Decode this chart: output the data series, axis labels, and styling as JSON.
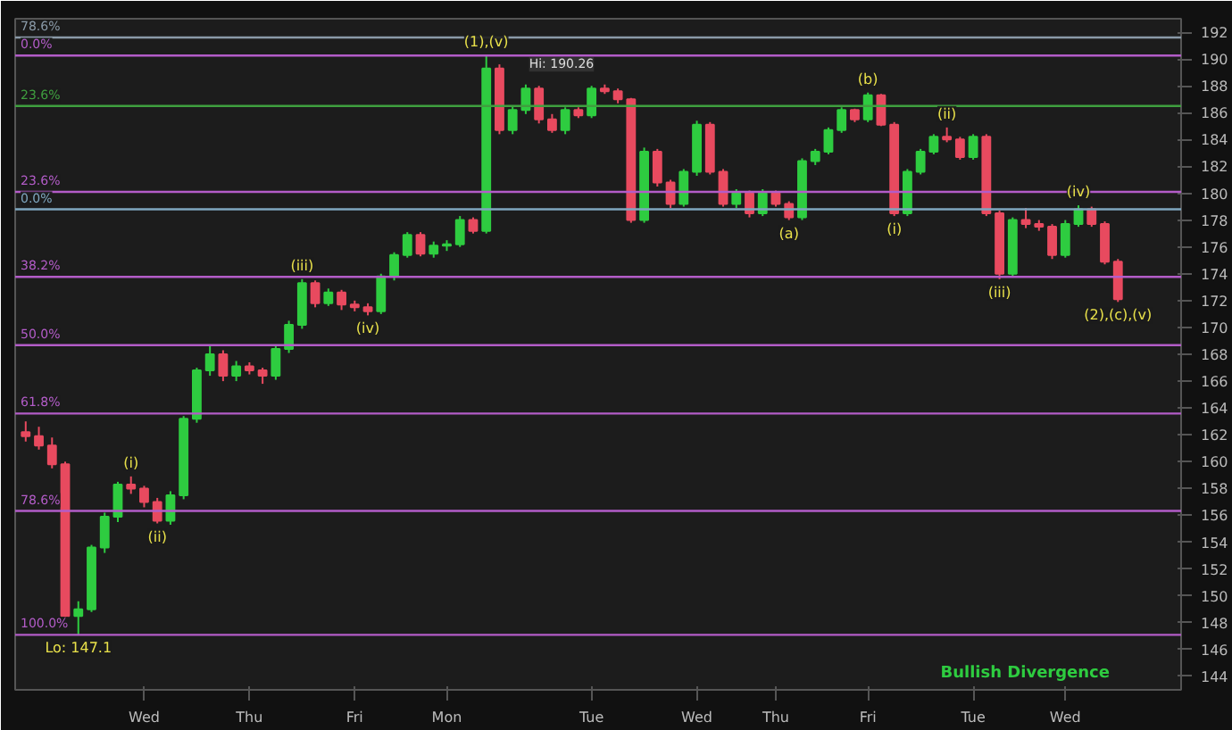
{
  "chart_data": {
    "type": "candlestick",
    "categories": [
      null,
      null,
      null,
      null,
      null,
      null,
      null,
      null,
      null,
      "Wed",
      null,
      null,
      null,
      null,
      null,
      null,
      null,
      "Thu",
      null,
      null,
      null,
      null,
      null,
      null,
      null,
      "Fri",
      null,
      null,
      null,
      null,
      null,
      null,
      "Mon",
      null,
      null,
      null,
      null,
      null,
      null,
      null,
      null,
      null,
      null,
      "Tue",
      null,
      null,
      null,
      null,
      null,
      null,
      null,
      "Wed",
      null,
      null,
      null,
      null,
      null,
      "Thu",
      null,
      null,
      null,
      null,
      null,
      null,
      "Fri",
      null,
      null,
      null,
      null,
      null,
      null,
      null,
      "Tue",
      null,
      null,
      null,
      null,
      null,
      null,
      "Wed",
      null,
      null,
      null,
      null
    ],
    "ohlc": [
      [
        162.2,
        163.0,
        161.5,
        161.9
      ],
      [
        161.9,
        162.6,
        160.9,
        161.2
      ],
      [
        161.2,
        161.8,
        159.5,
        159.8
      ],
      [
        159.8,
        160.0,
        148.3,
        148.5
      ],
      [
        148.5,
        149.6,
        147.1,
        149.0
      ],
      [
        149.0,
        153.8,
        148.8,
        153.6
      ],
      [
        153.6,
        156.2,
        153.2,
        155.9
      ],
      [
        155.9,
        158.5,
        155.5,
        158.3
      ],
      [
        158.3,
        158.9,
        157.6,
        158.0
      ],
      [
        158.0,
        158.2,
        156.6,
        157.0
      ],
      [
        157.0,
        157.3,
        155.4,
        155.6
      ],
      [
        155.6,
        157.8,
        155.3,
        157.5
      ],
      [
        157.5,
        163.4,
        157.2,
        163.2
      ],
      [
        163.2,
        167.0,
        162.9,
        166.8
      ],
      [
        166.8,
        168.6,
        166.4,
        168.0
      ],
      [
        168.0,
        168.3,
        166.0,
        166.4
      ],
      [
        166.4,
        167.5,
        166.0,
        167.1
      ],
      [
        167.1,
        167.4,
        166.5,
        166.8
      ],
      [
        166.8,
        167.0,
        165.8,
        166.4
      ],
      [
        166.4,
        168.6,
        166.1,
        168.4
      ],
      [
        168.4,
        170.5,
        168.1,
        170.2
      ],
      [
        170.2,
        173.6,
        169.9,
        173.3
      ],
      [
        173.3,
        173.5,
        171.5,
        171.8
      ],
      [
        171.8,
        172.9,
        171.6,
        172.6
      ],
      [
        172.6,
        172.8,
        171.3,
        171.7
      ],
      [
        171.7,
        172.0,
        171.2,
        171.5
      ],
      [
        171.5,
        171.8,
        170.9,
        171.2
      ],
      [
        171.2,
        174.0,
        171.0,
        173.8
      ],
      [
        173.8,
        175.6,
        173.5,
        175.4
      ],
      [
        175.4,
        177.1,
        175.2,
        176.9
      ],
      [
        176.9,
        177.1,
        175.3,
        175.5
      ],
      [
        175.5,
        176.4,
        175.2,
        176.1
      ],
      [
        176.1,
        176.5,
        175.7,
        176.2
      ],
      [
        176.2,
        178.3,
        176.0,
        178.0
      ],
      [
        178.0,
        178.2,
        177.0,
        177.2
      ],
      [
        177.2,
        190.26,
        177.0,
        189.3
      ],
      [
        189.3,
        189.6,
        184.4,
        184.7
      ],
      [
        184.7,
        186.5,
        184.4,
        186.2
      ],
      [
        186.2,
        188.1,
        185.9,
        187.8
      ],
      [
        187.8,
        188.0,
        185.2,
        185.5
      ],
      [
        185.5,
        185.9,
        184.5,
        184.7
      ],
      [
        184.7,
        186.4,
        184.4,
        186.2
      ],
      [
        186.2,
        186.4,
        185.6,
        185.8
      ],
      [
        185.8,
        188.0,
        185.6,
        187.8
      ],
      [
        187.8,
        188.1,
        187.4,
        187.6
      ],
      [
        187.6,
        187.8,
        186.7,
        187.0
      ],
      [
        187.0,
        187.1,
        177.8,
        178.0
      ],
      [
        178.0,
        183.4,
        177.8,
        183.1
      ],
      [
        183.1,
        183.3,
        180.5,
        180.8
      ],
      [
        180.8,
        181.0,
        178.9,
        179.2
      ],
      [
        179.2,
        181.8,
        179.0,
        181.6
      ],
      [
        181.6,
        185.4,
        181.3,
        185.1
      ],
      [
        185.1,
        185.3,
        181.4,
        181.6
      ],
      [
        181.6,
        181.8,
        179.0,
        179.2
      ],
      [
        179.2,
        180.3,
        178.9,
        180.0
      ],
      [
        180.0,
        180.2,
        178.2,
        178.5
      ],
      [
        178.5,
        180.3,
        178.3,
        180.0
      ],
      [
        180.0,
        180.2,
        179.0,
        179.2
      ],
      [
        179.2,
        179.4,
        178.0,
        178.2
      ],
      [
        178.2,
        182.6,
        178.0,
        182.4
      ],
      [
        182.4,
        183.3,
        182.1,
        183.1
      ],
      [
        183.1,
        184.9,
        182.9,
        184.7
      ],
      [
        184.7,
        186.4,
        184.5,
        186.2
      ],
      [
        186.2,
        186.3,
        185.3,
        185.5
      ],
      [
        185.5,
        187.5,
        185.3,
        187.3
      ],
      [
        187.3,
        187.4,
        185.0,
        185.1
      ],
      [
        185.1,
        185.3,
        178.3,
        178.5
      ],
      [
        178.5,
        181.8,
        178.3,
        181.6
      ],
      [
        181.6,
        183.3,
        181.4,
        183.1
      ],
      [
        183.1,
        184.4,
        182.9,
        184.2
      ],
      [
        184.2,
        184.9,
        183.8,
        184.0
      ],
      [
        184.0,
        184.2,
        182.5,
        182.7
      ],
      [
        182.7,
        184.4,
        182.5,
        184.2
      ],
      [
        184.2,
        184.4,
        178.3,
        178.5
      ],
      [
        178.5,
        178.7,
        173.6,
        174.0
      ],
      [
        174.0,
        178.2,
        173.8,
        178.0
      ],
      [
        178.0,
        178.9,
        177.4,
        177.7
      ],
      [
        177.7,
        178.0,
        177.2,
        177.5
      ],
      [
        177.5,
        177.7,
        175.1,
        175.4
      ],
      [
        175.4,
        178.0,
        175.2,
        177.7
      ],
      [
        177.7,
        179.1,
        177.5,
        178.8
      ],
      [
        178.8,
        179.0,
        177.5,
        177.7
      ],
      [
        177.7,
        177.9,
        174.7,
        174.9
      ],
      [
        174.9,
        175.1,
        171.9,
        172.1
      ]
    ],
    "colors": [
      "#e84a5f",
      "#e84a5f",
      "#e84a5f",
      "#e84a5f",
      "#2ecc40",
      "#2ecc40",
      "#2ecc40",
      "#2ecc40",
      "#e84a5f",
      "#e84a5f",
      "#e84a5f",
      "#2ecc40",
      "#2ecc40",
      "#2ecc40",
      "#2ecc40",
      "#e84a5f",
      "#2ecc40",
      "#e84a5f",
      "#e84a5f",
      "#2ecc40",
      "#2ecc40",
      "#2ecc40",
      "#e84a5f",
      "#2ecc40",
      "#e84a5f",
      "#e84a5f",
      "#e84a5f",
      "#2ecc40",
      "#2ecc40",
      "#2ecc40",
      "#e84a5f",
      "#2ecc40",
      "#2ecc40",
      "#2ecc40",
      "#e84a5f",
      "#2ecc40",
      "#e84a5f",
      "#2ecc40",
      "#2ecc40",
      "#e84a5f",
      "#e84a5f",
      "#2ecc40",
      "#e84a5f",
      "#2ecc40",
      "#e84a5f",
      "#e84a5f",
      "#e84a5f",
      "#2ecc40",
      "#e84a5f",
      "#e84a5f",
      "#2ecc40",
      "#2ecc40",
      "#e84a5f",
      "#e84a5f",
      "#2ecc40",
      "#e84a5f",
      "#2ecc40",
      "#e84a5f",
      "#e84a5f",
      "#2ecc40",
      "#2ecc40",
      "#2ecc40",
      "#2ecc40",
      "#e84a5f",
      "#2ecc40",
      "#e84a5f",
      "#e84a5f",
      "#2ecc40",
      "#2ecc40",
      "#2ecc40",
      "#e84a5f",
      "#e84a5f",
      "#2ecc40",
      "#e84a5f",
      "#e84a5f",
      "#2ecc40",
      "#e84a5f",
      "#e84a5f",
      "#e84a5f",
      "#2ecc40",
      "#2ecc40",
      "#e84a5f",
      "#e84a5f",
      "#e84a5f"
    ],
    "ylim": [
      143,
      193
    ],
    "yticks": [
      144,
      146,
      148,
      150,
      152,
      154,
      156,
      158,
      160,
      162,
      164,
      166,
      168,
      170,
      172,
      174,
      176,
      178,
      180,
      182,
      184,
      186,
      188,
      190,
      192
    ],
    "ref_lines": [
      {
        "axis": "y",
        "value": 191.6,
        "color": "#8a9aa8"
      },
      {
        "axis": "y",
        "value": 190.26,
        "color": "#b35cc8"
      },
      {
        "axis": "y",
        "value": 186.5,
        "color": "#3f9f3f"
      },
      {
        "axis": "y",
        "value": 180.1,
        "color": "#b35cc8"
      },
      {
        "axis": "y",
        "value": 178.8,
        "color": "#7fa7c0"
      },
      {
        "axis": "y",
        "value": 173.77,
        "color": "#b35cc8"
      },
      {
        "axis": "y",
        "value": 168.68,
        "color": "#b35cc8"
      },
      {
        "axis": "y",
        "value": 163.59,
        "color": "#b35cc8"
      },
      {
        "axis": "y",
        "value": 156.33,
        "color": "#b35cc8"
      },
      {
        "axis": "y",
        "value": 147.1,
        "color": "#b35cc8"
      }
    ],
    "annotations": [
      {
        "text": "78.6%",
        "y": 191.6
      },
      {
        "text": "0.0%",
        "y": 190.26
      },
      {
        "text": "23.6%",
        "y": 186.5
      },
      {
        "text": "23.6%",
        "y": 180.1
      },
      {
        "text": "0.0%",
        "y": 178.8
      },
      {
        "text": "38.2%",
        "y": 173.77
      },
      {
        "text": "50.0%",
        "y": 168.68
      },
      {
        "text": "61.8%",
        "y": 163.59
      },
      {
        "text": "78.6%",
        "y": 156.33
      },
      {
        "text": "100.0%",
        "y": 147.1
      },
      {
        "text": "Lo: 147.1",
        "y": 147.1
      },
      {
        "text": "(i)",
        "y": 158.9
      },
      {
        "text": "(ii)",
        "y": 155.4
      },
      {
        "text": "(iii)",
        "y": 173.6
      },
      {
        "text": "(iv)",
        "y": 170.9
      },
      {
        "text": "(1),(v)",
        "y": 190.26
      },
      {
        "text": "Hi: 190.26",
        "y": 190.26
      },
      {
        "text": "(a)",
        "y": 178.0
      },
      {
        "text": "(b)",
        "y": 187.5
      },
      {
        "text": "(i)",
        "y": 178.3
      },
      {
        "text": "(ii)",
        "y": 184.9
      },
      {
        "text": "(iii)",
        "y": 173.6
      },
      {
        "text": "(iv)",
        "y": 179.1
      },
      {
        "text": "(2),(c),(v)",
        "y": 171.9
      },
      "Bullish Divergence"
    ]
  }
}
